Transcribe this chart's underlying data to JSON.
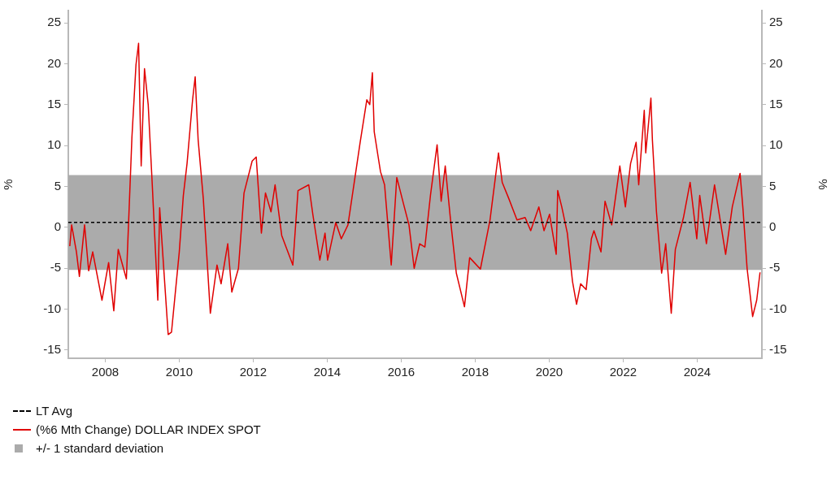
{
  "chart_data": {
    "type": "line",
    "x": [
      2007.04,
      2007.09,
      2007.22,
      2007.3,
      2007.44,
      2007.55,
      2007.66,
      2007.91,
      2008.09,
      2008.23,
      2008.35,
      2008.57,
      2008.72,
      2008.83,
      2008.9,
      2008.97,
      2009.06,
      2009.16,
      2009.27,
      2009.42,
      2009.47,
      2009.7,
      2009.79,
      2010.0,
      2010.11,
      2010.21,
      2010.36,
      2010.43,
      2010.51,
      2010.65,
      2010.84,
      2011.02,
      2011.13,
      2011.31,
      2011.42,
      2011.6,
      2011.75,
      2011.97,
      2012.08,
      2012.22,
      2012.33,
      2012.48,
      2012.59,
      2012.77,
      2013.07,
      2013.21,
      2013.5,
      2013.61,
      2013.8,
      2013.94,
      2014.01,
      2014.23,
      2014.38,
      2014.56,
      2014.75,
      2014.89,
      2015.07,
      2015.15,
      2015.22,
      2015.27,
      2015.37,
      2015.44,
      2015.55,
      2015.73,
      2015.88,
      2016.06,
      2016.21,
      2016.35,
      2016.5,
      2016.64,
      2016.79,
      2016.97,
      2017.08,
      2017.19,
      2017.34,
      2017.49,
      2017.71,
      2017.85,
      2018.14,
      2018.4,
      2018.63,
      2018.73,
      2018.91,
      2019.13,
      2019.35,
      2019.5,
      2019.72,
      2019.86,
      2020.01,
      2020.19,
      2020.23,
      2020.34,
      2020.49,
      2020.63,
      2020.74,
      2020.85,
      2021.0,
      2021.14,
      2021.21,
      2021.4,
      2021.51,
      2021.69,
      2021.91,
      2022.06,
      2022.2,
      2022.35,
      2022.42,
      2022.57,
      2022.61,
      2022.75,
      2022.79,
      2022.9,
      2023.04,
      2023.15,
      2023.3,
      2023.41,
      2023.63,
      2023.81,
      2023.99,
      2024.07,
      2024.25,
      2024.47,
      2024.77,
      2024.95,
      2025.16,
      2025.24,
      2025.35,
      2025.5,
      2025.61,
      2025.7
    ],
    "series": [
      {
        "name": "(%6 Mth Change) DOLLAR INDEX SPOT",
        "color": "#e00000",
        "values": [
          -2.3,
          0.3,
          -3.0,
          -6.0,
          0.3,
          -5.3,
          -3.0,
          -8.9,
          -4.3,
          -10.2,
          -2.7,
          -6.3,
          11.0,
          19.9,
          22.5,
          7.5,
          19.4,
          15.0,
          5.2,
          -8.9,
          2.4,
          -13.1,
          -12.8,
          -3.0,
          3.9,
          7.8,
          15.6,
          18.4,
          10.7,
          3.5,
          -10.5,
          -4.6,
          -6.9,
          -2.0,
          -7.9,
          -5.0,
          4.2,
          8.1,
          8.6,
          -0.7,
          4.2,
          1.9,
          5.2,
          -1.0,
          -4.6,
          4.5,
          5.2,
          1.6,
          -4.0,
          -0.7,
          -4.0,
          0.6,
          -1.4,
          0.3,
          6.1,
          10.4,
          15.6,
          15.0,
          18.9,
          11.7,
          8.8,
          6.8,
          5.2,
          -4.6,
          6.1,
          2.9,
          0.3,
          -5.0,
          -2.0,
          -2.4,
          3.9,
          10.1,
          3.2,
          7.5,
          0.6,
          -5.6,
          -9.7,
          -3.7,
          -5.1,
          0.9,
          9.1,
          5.5,
          3.5,
          0.9,
          1.2,
          -0.4,
          2.5,
          -0.4,
          1.6,
          -3.3,
          4.5,
          2.5,
          -0.7,
          -6.6,
          -9.4,
          -6.9,
          -7.6,
          -1.4,
          -0.4,
          -3.0,
          3.2,
          0.3,
          7.5,
          2.5,
          7.8,
          10.4,
          5.2,
          14.3,
          9.1,
          15.8,
          10.7,
          1.9,
          -5.6,
          -2.0,
          -10.5,
          -2.7,
          1.2,
          5.5,
          -1.4,
          3.9,
          -2.0,
          5.2,
          -3.3,
          2.5,
          6.6,
          2.2,
          -5.0,
          -10.9,
          -8.9,
          -5.5
        ]
      }
    ],
    "xlim": [
      2007,
      2025.75
    ],
    "xticks": [
      2008,
      2010,
      2012,
      2014,
      2016,
      2018,
      2020,
      2022,
      2024
    ],
    "ylim": [
      -16,
      26.5
    ],
    "yticks": [
      -15,
      -10,
      -5,
      0,
      5,
      10,
      15,
      20,
      25
    ],
    "y2lim": [
      -16,
      26.5
    ],
    "y2ticks": [
      -15,
      -10,
      -5,
      0,
      5,
      10,
      15,
      20,
      25
    ],
    "ylabel": "%",
    "y2label": "%",
    "ref_lines": [
      {
        "axis": "y",
        "value": 0.6,
        "label": "LT Avg",
        "color": "#000000",
        "line_style": "dashed"
      }
    ],
    "bands": [
      {
        "axis": "y",
        "from": -5.2,
        "to": 6.4,
        "label": "+/- 1 standard deviation",
        "color": "#ababab"
      }
    ],
    "legend": "bottom",
    "grid": false,
    "marker": "none",
    "line_style": "solid"
  }
}
